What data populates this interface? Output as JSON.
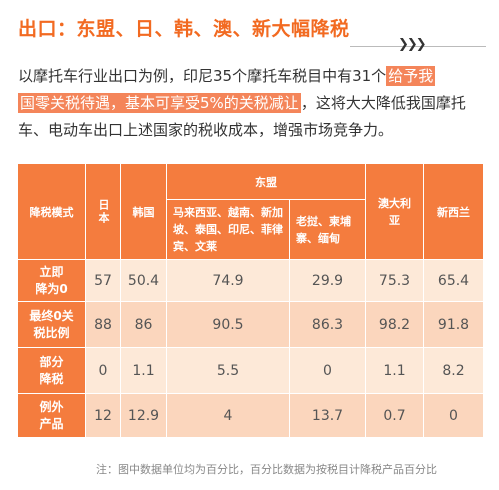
{
  "title": "出口：东盟、日、韩、澳、新大幅降税",
  "paragraph": {
    "part1": "以摩托车行业出口为例，印尼35个摩托车税目中有31个",
    "highlight1": "给予我",
    "highlight2": "国零关税待遇，基本可享受5%的关税减让",
    "part2": "，这将大大降低我国摩托车、电动车出口上述国家的税收成本，增强市场竞争力。"
  },
  "table": {
    "corner": "降税模式",
    "japan": "日本",
    "korea": "韩国",
    "asean": "东盟",
    "asean_sub1": "马来西亚、越南、新加坡、泰国、印尼、菲律宾、文莱",
    "asean_sub2": "老挝、柬埔寨、缅甸",
    "australia": "澳大利亚",
    "nz": "新西兰",
    "rows": [
      {
        "label": "立即降为0",
        "values": [
          "57",
          "50.4",
          "74.9",
          "29.9",
          "75.3",
          "65.4"
        ]
      },
      {
        "label": "最终0关税比例",
        "values": [
          "88",
          "86",
          "90.5",
          "86.3",
          "98.2",
          "91.8"
        ]
      },
      {
        "label": "部分降税",
        "values": [
          "0",
          "1.1",
          "5.5",
          "0",
          "1.1",
          "8.2"
        ]
      },
      {
        "label": "例外产品",
        "values": [
          "12",
          "12.9",
          "4",
          "13.7",
          "0.7",
          "0"
        ]
      }
    ]
  },
  "note": "注：图中数据单位均为百分比，百分比数据为按税目计降税产品百分比",
  "colors": {
    "accent": "#f26a21",
    "header_bg": "#f47c3e",
    "cell_light": "#fde9d8",
    "cell_dark": "#fbd6bd"
  }
}
